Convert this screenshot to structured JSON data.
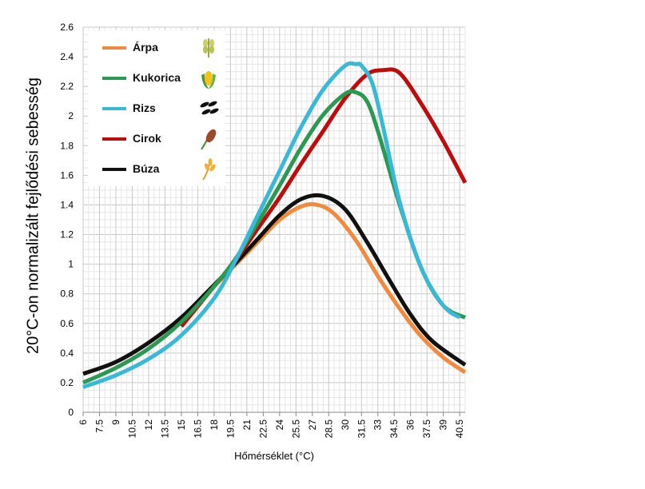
{
  "chart_data": {
    "type": "line",
    "title": "",
    "xlabel": "Hőmérséklet (°C)",
    "ylabel": "20°C-on normalizált fejlődési sebesség",
    "xlim": [
      6,
      41
    ],
    "ylim": [
      0,
      2.6
    ],
    "x_ticks": [
      "6",
      "7.5",
      "9",
      "10.5",
      "12",
      "13.5",
      "15",
      "16.5",
      "18",
      "19.5",
      "21",
      "22.5",
      "24",
      "25.5",
      "27",
      "28.5",
      "30",
      "31.5",
      "33",
      "34.5",
      "36",
      "37.5",
      "39",
      "40.5"
    ],
    "y_ticks": [
      "0",
      "0.2",
      "0.4",
      "0.6",
      "0.8",
      "1",
      "1.2",
      "1.4",
      "1.6",
      "1.8",
      "2",
      "2.2",
      "2.4",
      "2.6"
    ],
    "grid": true,
    "legend_position": "top-left",
    "series": [
      {
        "name": "Árpa",
        "color": "#f4893b",
        "icon": "barley-icon",
        "x": [
          6,
          9,
          12,
          15,
          18,
          20,
          22,
          24,
          26,
          27.5,
          29,
          31,
          33,
          35,
          37,
          39,
          41
        ],
        "y": [
          0.26,
          0.34,
          0.47,
          0.64,
          0.85,
          1.0,
          1.15,
          1.3,
          1.39,
          1.4,
          1.34,
          1.16,
          0.92,
          0.7,
          0.51,
          0.37,
          0.27
        ]
      },
      {
        "name": "Kukorica",
        "color": "#2a9a52",
        "icon": "corn-icon",
        "x": [
          6,
          9,
          12,
          15,
          18,
          20,
          22,
          24,
          26,
          28,
          30,
          31,
          32,
          33,
          35,
          37,
          39,
          41
        ],
        "y": [
          0.2,
          0.3,
          0.43,
          0.61,
          0.85,
          1.04,
          1.28,
          1.53,
          1.79,
          2.01,
          2.15,
          2.16,
          2.1,
          1.9,
          1.4,
          0.97,
          0.72,
          0.64
        ]
      },
      {
        "name": "Rizs",
        "color": "#3ab8d8",
        "icon": "rice-icon",
        "x": [
          6,
          9,
          12,
          15,
          18,
          20,
          22,
          24,
          26,
          28,
          30,
          31,
          31.5,
          32.5,
          33.5,
          35,
          37,
          39,
          40.5
        ],
        "y": [
          0.17,
          0.25,
          0.36,
          0.52,
          0.77,
          1.03,
          1.33,
          1.63,
          1.93,
          2.18,
          2.34,
          2.35,
          2.34,
          2.22,
          1.92,
          1.42,
          0.97,
          0.72,
          0.64
        ]
      },
      {
        "name": "Cirok",
        "color": "#c00b0b",
        "icon": "sorghum-icon",
        "x": [
          15,
          18,
          20,
          22,
          24,
          26,
          28,
          30,
          32,
          33.5,
          35,
          37,
          39,
          41
        ],
        "y": [
          0.58,
          0.85,
          1.03,
          1.24,
          1.45,
          1.68,
          1.9,
          2.12,
          2.28,
          2.31,
          2.29,
          2.08,
          1.83,
          1.55
        ]
      },
      {
        "name": "Búza",
        "color": "#111111",
        "icon": "wheat-icon",
        "x": [
          6,
          9,
          12,
          15,
          18,
          20,
          22,
          24,
          26,
          28,
          30,
          32,
          34,
          36,
          38,
          41
        ],
        "y": [
          0.26,
          0.34,
          0.47,
          0.64,
          0.86,
          1.01,
          1.17,
          1.33,
          1.44,
          1.46,
          1.37,
          1.15,
          0.9,
          0.66,
          0.48,
          0.32
        ]
      }
    ]
  }
}
